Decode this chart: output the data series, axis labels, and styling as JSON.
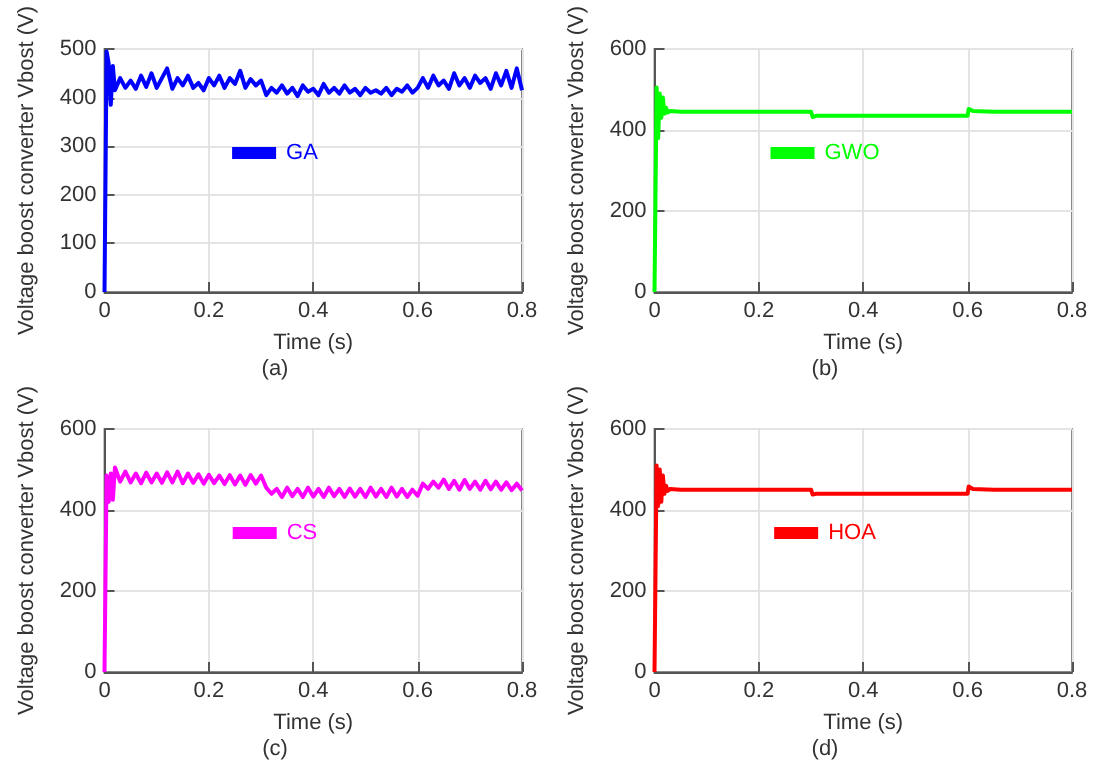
{
  "chart_data": [
    {
      "type": "line",
      "xlabel": "Time (s)",
      "ylabel": "Voltage boost converter Vbost (V)",
      "annotations": [
        "(a)"
      ],
      "xlim": [
        0,
        0.8
      ],
      "xticks": [
        0,
        0.2,
        0.4,
        0.6,
        0.8
      ],
      "ylim": [
        0,
        500
      ],
      "yticks": [
        0,
        100,
        200,
        300,
        400,
        500
      ],
      "grid": true,
      "legend": "top",
      "marker": "none",
      "line_style": "solid",
      "series": [
        {
          "name": "GA",
          "color": "#0000ff",
          "x": [
            0,
            0.004,
            0.008,
            0.012,
            0.016,
            0.02,
            0.03,
            0.04,
            0.05,
            0.06,
            0.07,
            0.08,
            0.09,
            0.1,
            0.11,
            0.12,
            0.13,
            0.14,
            0.15,
            0.16,
            0.17,
            0.18,
            0.19,
            0.2,
            0.21,
            0.22,
            0.23,
            0.24,
            0.25,
            0.26,
            0.27,
            0.28,
            0.29,
            0.3,
            0.31,
            0.32,
            0.33,
            0.34,
            0.35,
            0.36,
            0.37,
            0.38,
            0.39,
            0.4,
            0.41,
            0.42,
            0.43,
            0.44,
            0.45,
            0.46,
            0.47,
            0.48,
            0.49,
            0.5,
            0.51,
            0.52,
            0.53,
            0.54,
            0.55,
            0.56,
            0.57,
            0.58,
            0.59,
            0.6,
            0.61,
            0.62,
            0.63,
            0.64,
            0.65,
            0.66,
            0.67,
            0.68,
            0.69,
            0.7,
            0.71,
            0.72,
            0.73,
            0.74,
            0.75,
            0.76,
            0.77,
            0.78,
            0.79,
            0.8
          ],
          "values": [
            0,
            495,
            470,
            385,
            465,
            415,
            440,
            420,
            435,
            418,
            445,
            422,
            450,
            420,
            440,
            460,
            418,
            440,
            425,
            445,
            420,
            430,
            415,
            440,
            425,
            445,
            420,
            440,
            428,
            455,
            420,
            438,
            425,
            435,
            405,
            420,
            410,
            425,
            408,
            420,
            403,
            425,
            412,
            418,
            405,
            428,
            410,
            420,
            408,
            425,
            410,
            418,
            405,
            420,
            410,
            415,
            408,
            420,
            405,
            418,
            412,
            425,
            410,
            420,
            440,
            420,
            445,
            425,
            435,
            418,
            450,
            425,
            440,
            420,
            445,
            430,
            440,
            418,
            450,
            425,
            455,
            420,
            460,
            415
          ]
        }
      ]
    },
    {
      "type": "line",
      "xlabel": "Time (s)",
      "ylabel": "Voltage boost converter Vbost (V)",
      "annotations": [
        "(b)"
      ],
      "xlim": [
        0,
        0.8
      ],
      "xticks": [
        0,
        0.2,
        0.4,
        0.6,
        0.8
      ],
      "ylim": [
        0,
        600
      ],
      "yticks": [
        0,
        200,
        400,
        600
      ],
      "grid": true,
      "legend": "top",
      "marker": "none",
      "line_style": "solid",
      "series": [
        {
          "name": "GWO",
          "color": "#00ff00",
          "x": [
            0,
            0.004,
            0.007,
            0.01,
            0.013,
            0.016,
            0.019,
            0.022,
            0.025,
            0.03,
            0.05,
            0.1,
            0.15,
            0.2,
            0.25,
            0.3,
            0.303,
            0.31,
            0.35,
            0.4,
            0.45,
            0.5,
            0.55,
            0.6,
            0.602,
            0.61,
            0.65,
            0.7,
            0.75,
            0.8
          ],
          "values": [
            0,
            505,
            380,
            490,
            430,
            480,
            440,
            455,
            443,
            447,
            445,
            445,
            445,
            445,
            445,
            445,
            432,
            435,
            435,
            435,
            435,
            435,
            435,
            435,
            452,
            447,
            445,
            445,
            445,
            445
          ]
        }
      ]
    },
    {
      "type": "line",
      "xlabel": "Time (s)",
      "ylabel": "Voltage boost converter Vbost (V)",
      "annotations": [
        "(c)"
      ],
      "xlim": [
        0,
        0.8
      ],
      "xticks": [
        0,
        0.2,
        0.4,
        0.6,
        0.8
      ],
      "ylim": [
        0,
        600
      ],
      "yticks": [
        0,
        200,
        400,
        600
      ],
      "grid": true,
      "legend": "top",
      "marker": "none",
      "line_style": "solid",
      "series": [
        {
          "name": "CS",
          "color": "#ff00ff",
          "x": [
            0,
            0.004,
            0.008,
            0.012,
            0.016,
            0.02,
            0.03,
            0.04,
            0.05,
            0.06,
            0.07,
            0.08,
            0.09,
            0.1,
            0.11,
            0.12,
            0.13,
            0.14,
            0.15,
            0.16,
            0.17,
            0.18,
            0.19,
            0.2,
            0.21,
            0.22,
            0.23,
            0.24,
            0.25,
            0.26,
            0.27,
            0.28,
            0.29,
            0.3,
            0.31,
            0.32,
            0.33,
            0.34,
            0.35,
            0.36,
            0.37,
            0.38,
            0.39,
            0.4,
            0.41,
            0.42,
            0.43,
            0.44,
            0.45,
            0.46,
            0.47,
            0.48,
            0.49,
            0.5,
            0.51,
            0.52,
            0.53,
            0.54,
            0.55,
            0.56,
            0.57,
            0.58,
            0.59,
            0.6,
            0.61,
            0.62,
            0.63,
            0.64,
            0.65,
            0.66,
            0.67,
            0.68,
            0.69,
            0.7,
            0.71,
            0.72,
            0.73,
            0.74,
            0.75,
            0.76,
            0.77,
            0.78,
            0.79,
            0.8
          ],
          "values": [
            0,
            485,
            420,
            490,
            425,
            505,
            470,
            495,
            468,
            490,
            466,
            492,
            468,
            490,
            467,
            493,
            468,
            495,
            466,
            490,
            467,
            488,
            465,
            487,
            466,
            485,
            464,
            486,
            463,
            485,
            462,
            486,
            465,
            485,
            455,
            440,
            452,
            432,
            455,
            434,
            452,
            432,
            455,
            433,
            452,
            432,
            455,
            434,
            452,
            432,
            453,
            433,
            452,
            432,
            455,
            433,
            452,
            432,
            455,
            433,
            452,
            432,
            450,
            435,
            465,
            452,
            470,
            455,
            475,
            452,
            472,
            450,
            474,
            452,
            470,
            450,
            472,
            451,
            470,
            450,
            468,
            449,
            465,
            448
          ]
        }
      ]
    },
    {
      "type": "line",
      "xlabel": "Time (s)",
      "ylabel": "Voltage boost converter Vbost (V)",
      "annotations": [
        "(d)"
      ],
      "xlim": [
        0,
        0.8
      ],
      "xticks": [
        0,
        0.2,
        0.4,
        0.6,
        0.8
      ],
      "ylim": [
        0,
        600
      ],
      "yticks": [
        0,
        200,
        400,
        600
      ],
      "grid": true,
      "legend": "top",
      "marker": "none",
      "line_style": "solid",
      "series": [
        {
          "name": "HOA",
          "color": "#ff0000",
          "x": [
            0,
            0.004,
            0.007,
            0.01,
            0.013,
            0.016,
            0.019,
            0.022,
            0.025,
            0.03,
            0.05,
            0.1,
            0.15,
            0.2,
            0.25,
            0.3,
            0.303,
            0.31,
            0.35,
            0.4,
            0.45,
            0.5,
            0.55,
            0.6,
            0.602,
            0.61,
            0.65,
            0.7,
            0.75,
            0.8
          ],
          "values": [
            0,
            510,
            410,
            500,
            420,
            485,
            440,
            460,
            447,
            452,
            450,
            450,
            450,
            450,
            450,
            450,
            438,
            440,
            440,
            440,
            440,
            440,
            440,
            440,
            458,
            452,
            450,
            450,
            450,
            450
          ]
        }
      ]
    }
  ]
}
